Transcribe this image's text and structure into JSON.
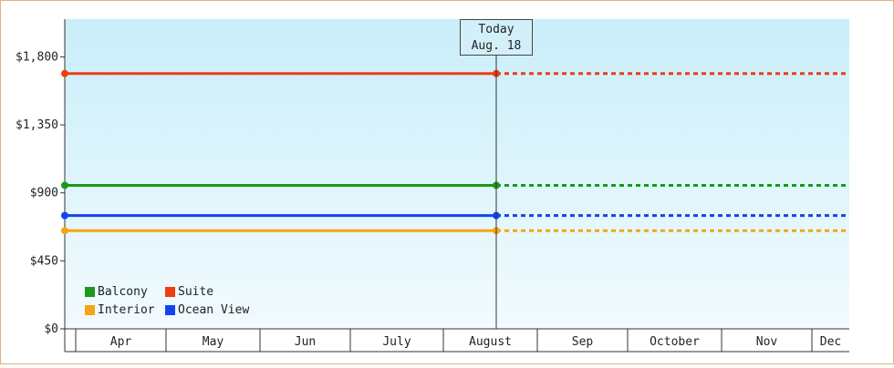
{
  "chart_data": {
    "type": "line",
    "title": "",
    "xlabel": "",
    "ylabel": "",
    "ylim": [
      0,
      2050
    ],
    "y_ticks": [
      "$0",
      "$450",
      "$900",
      "$1,350",
      "$1,800"
    ],
    "y_tick_values": [
      0,
      450,
      900,
      1350,
      1800
    ],
    "x_categories": [
      "Apr",
      "May",
      "Jun",
      "July",
      "August",
      "Sep",
      "October",
      "Nov",
      "Dec"
    ],
    "today": {
      "line1": "Today",
      "line2": "Aug. 18"
    },
    "series": [
      {
        "name": "Balcony",
        "color": "#1a9a1a",
        "value": 950
      },
      {
        "name": "Suite",
        "color": "#f03c0f",
        "value": 1690
      },
      {
        "name": "Interior",
        "color": "#f5a511",
        "value": 650
      },
      {
        "name": "Ocean View",
        "color": "#1245f0",
        "value": 750
      }
    ],
    "legend_order": [
      0,
      1,
      2,
      3
    ],
    "grid": false,
    "legend_position": "bottom-left",
    "background_gradient": [
      "#c9eefa",
      "#f2fbfe"
    ]
  }
}
